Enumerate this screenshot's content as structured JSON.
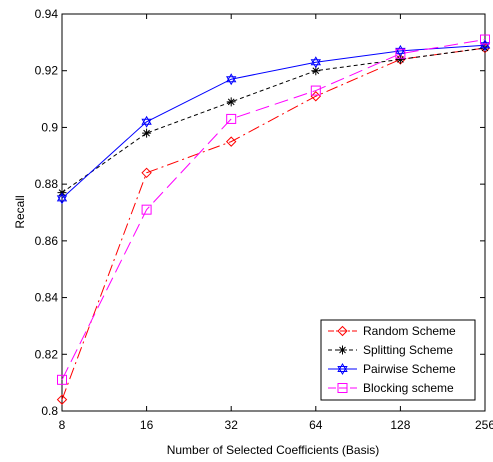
{
  "chart_data": {
    "type": "line",
    "title": "",
    "xlabel": "Number of Selected Coefficients (Basis)",
    "ylabel": "Recall",
    "x_scale": "log2",
    "categories": [
      "8",
      "16",
      "32",
      "64",
      "128",
      "256"
    ],
    "x": [
      8,
      16,
      32,
      64,
      128,
      256
    ],
    "xlim": [
      8,
      256
    ],
    "ylim": [
      0.8,
      0.94
    ],
    "yticks": [
      "0.8",
      "0.82",
      "0.84",
      "0.86",
      "0.88",
      "0.9",
      "0.92",
      "0.94"
    ],
    "grid": false,
    "legend_position": "lower-right",
    "series": [
      {
        "name": "Random Scheme",
        "color": "#ff0000",
        "line_style": "dash-dot",
        "marker": "diamond",
        "values": [
          0.804,
          0.884,
          0.895,
          0.911,
          0.924,
          0.928
        ]
      },
      {
        "name": "Splitting Scheme",
        "color": "#000000",
        "line_style": "dashed",
        "marker": "asterisk",
        "values": [
          0.877,
          0.898,
          0.909,
          0.92,
          0.924,
          0.928
        ]
      },
      {
        "name": "Pairwise Scheme",
        "color": "#0000ff",
        "line_style": "solid",
        "marker": "hexagram",
        "values": [
          0.875,
          0.902,
          0.917,
          0.923,
          0.927,
          0.929
        ]
      },
      {
        "name": "Blocking scheme",
        "color": "#ff00ff",
        "line_style": "long-dash",
        "marker": "square",
        "values": [
          0.811,
          0.871,
          0.903,
          0.913,
          0.926,
          0.931
        ]
      }
    ]
  }
}
